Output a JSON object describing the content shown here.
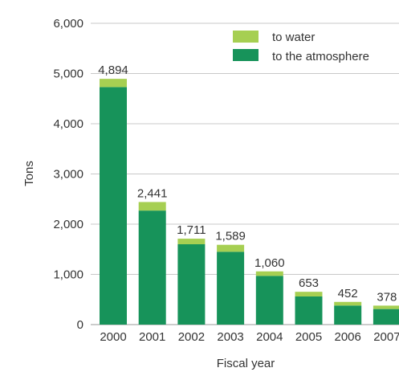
{
  "chart_data": {
    "type": "bar",
    "stacked": true,
    "xlabel": "Fiscal year",
    "ylabel": "Tons",
    "ylim": [
      0,
      6000
    ],
    "yticks": [
      0,
      1000,
      2000,
      3000,
      4000,
      5000,
      6000
    ],
    "ytick_labels": [
      "0",
      "1,000",
      "2,000",
      "3,000",
      "4,000",
      "5,000",
      "6,000"
    ],
    "grid": true,
    "legend_position": "top-right",
    "categories": [
      "2000",
      "2001",
      "2002",
      "2003",
      "2004",
      "2005",
      "2006",
      "2007"
    ],
    "totals": [
      4894,
      2441,
      1711,
      1589,
      1060,
      653,
      452,
      378
    ],
    "total_labels": [
      "4,894",
      "2,441",
      "1,711",
      "1,589",
      "1,060",
      "653",
      "452",
      "378"
    ],
    "series": [
      {
        "name": "to the atmosphere",
        "color": "#17935a",
        "values": [
          4730,
          2270,
          1600,
          1450,
          970,
          560,
          380,
          310
        ]
      },
      {
        "name": "to water",
        "color": "#a6cf52",
        "values": [
          164,
          171,
          111,
          139,
          90,
          93,
          72,
          68
        ]
      }
    ]
  }
}
